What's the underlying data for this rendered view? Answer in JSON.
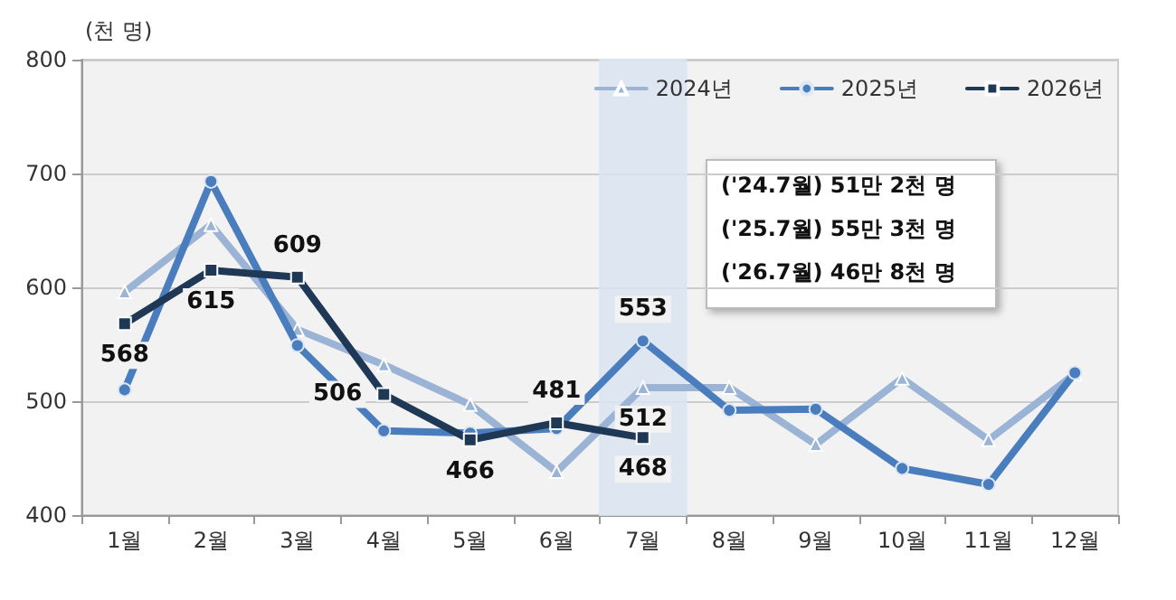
{
  "chart_data": {
    "type": "line",
    "ylabel": "(천 명)",
    "categories": [
      "1월",
      "2월",
      "3월",
      "4월",
      "5월",
      "6월",
      "7월",
      "8월",
      "9월",
      "10월",
      "11월",
      "12월"
    ],
    "series": [
      {
        "name": "2024년",
        "color": "#9bb4d6",
        "marker": "triangle",
        "values": [
          596,
          655,
          563,
          532,
          497,
          438,
          512,
          512,
          462,
          520,
          466,
          524
        ],
        "value_labels": [
          null,
          null,
          null,
          null,
          null,
          null,
          "512",
          null,
          null,
          null,
          null,
          null
        ]
      },
      {
        "name": "2025년",
        "color": "#4a7dbd",
        "marker": "circle",
        "values": [
          510,
          693,
          549,
          474,
          472,
          476,
          553,
          492,
          493,
          441,
          427,
          525
        ],
        "value_labels": [
          null,
          null,
          null,
          null,
          null,
          null,
          "553",
          null,
          null,
          null,
          null,
          null
        ]
      },
      {
        "name": "2026년",
        "color": "#1e3856",
        "marker": "square",
        "values": [
          568,
          615,
          609,
          506,
          466,
          481,
          468,
          null,
          null,
          null,
          null,
          null
        ],
        "value_labels": [
          "568",
          "615",
          "609",
          "506",
          "466",
          "481",
          "468",
          null,
          null,
          null,
          null,
          null
        ]
      }
    ],
    "ylim": [
      400,
      800
    ],
    "yticks": [
      400,
      500,
      600,
      700,
      800
    ],
    "grid": "y",
    "legend": "top right",
    "bands": [
      {
        "axis": "x",
        "from": "7월",
        "to": "7월",
        "color": "#dbe5f1"
      }
    ],
    "annotations": [
      "('24.7월) 51만 2천 명",
      "('25.7월) 55만 3천 명",
      "('26.7월) 46만 8천 명"
    ]
  }
}
